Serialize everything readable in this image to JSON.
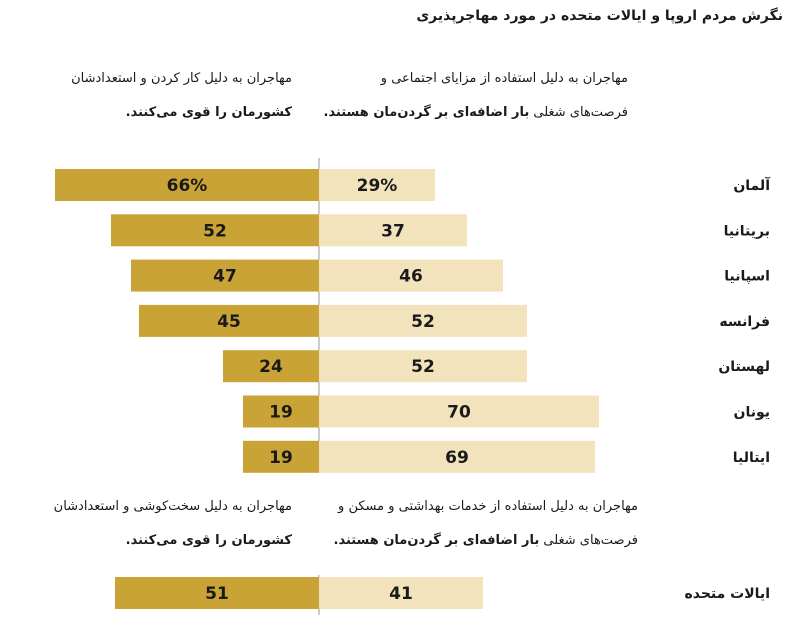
{
  "title": "نگرش مردم اروپا و ایالات متحده در مورد مهاجرپذیری",
  "headers": {
    "europe": {
      "left": {
        "line1": "مهاجران به دلیل کار کردن و استعدادشان",
        "line2_bold": "کشورمان را قوی می‌کنند."
      },
      "right": {
        "line1": "مهاجران به دلیل استفاده از مزایای اجتماعی و",
        "line2_plain": "فرصت‌های شغلی ",
        "line2_bold": "بار اضافه‌ای بر گردن‌مان هستند."
      }
    },
    "us": {
      "left": {
        "line1": "مهاجران به دلیل سخت‌کوشی و استعدادشان",
        "line2_bold": "کشورمان را قوی می‌کنند."
      },
      "right": {
        "line1": "مهاجران به دلیل استفاده از خدمات بهداشتی و مسکن و",
        "line2_plain": "فرصت‌های شغلی ",
        "line2_bold": "بار اضافه‌ای بر گردن‌مان هستند."
      }
    }
  },
  "colors": {
    "strengthen": "#c9a335",
    "burden": "#f2e3bd",
    "divider": "#9a9a9a"
  },
  "chart_data": {
    "type": "bar",
    "orientation": "horizontal-diverging",
    "unit": "%",
    "categories": [
      "آلمان",
      "بریتانیا",
      "اسپانیا",
      "فرانسه",
      "لهستان",
      "یونان",
      "ایتالیا"
    ],
    "series": [
      {
        "values": [
          66,
          52,
          47,
          45,
          24,
          19,
          19
        ]
      },
      {
        "values": [
          29,
          37,
          46,
          52,
          52,
          70,
          69
        ]
      }
    ],
    "value_labels_strengthen": [
      "66%",
      "52",
      "47",
      "45",
      "24",
      "19",
      "19"
    ],
    "value_labels_burden": [
      "29%",
      "37",
      "46",
      "52",
      "52",
      "70",
      "69"
    ],
    "us": {
      "category": "ایالات متحده",
      "strengthen": 51,
      "burden": 41,
      "label_strengthen": "51",
      "label_burden": "41"
    }
  }
}
